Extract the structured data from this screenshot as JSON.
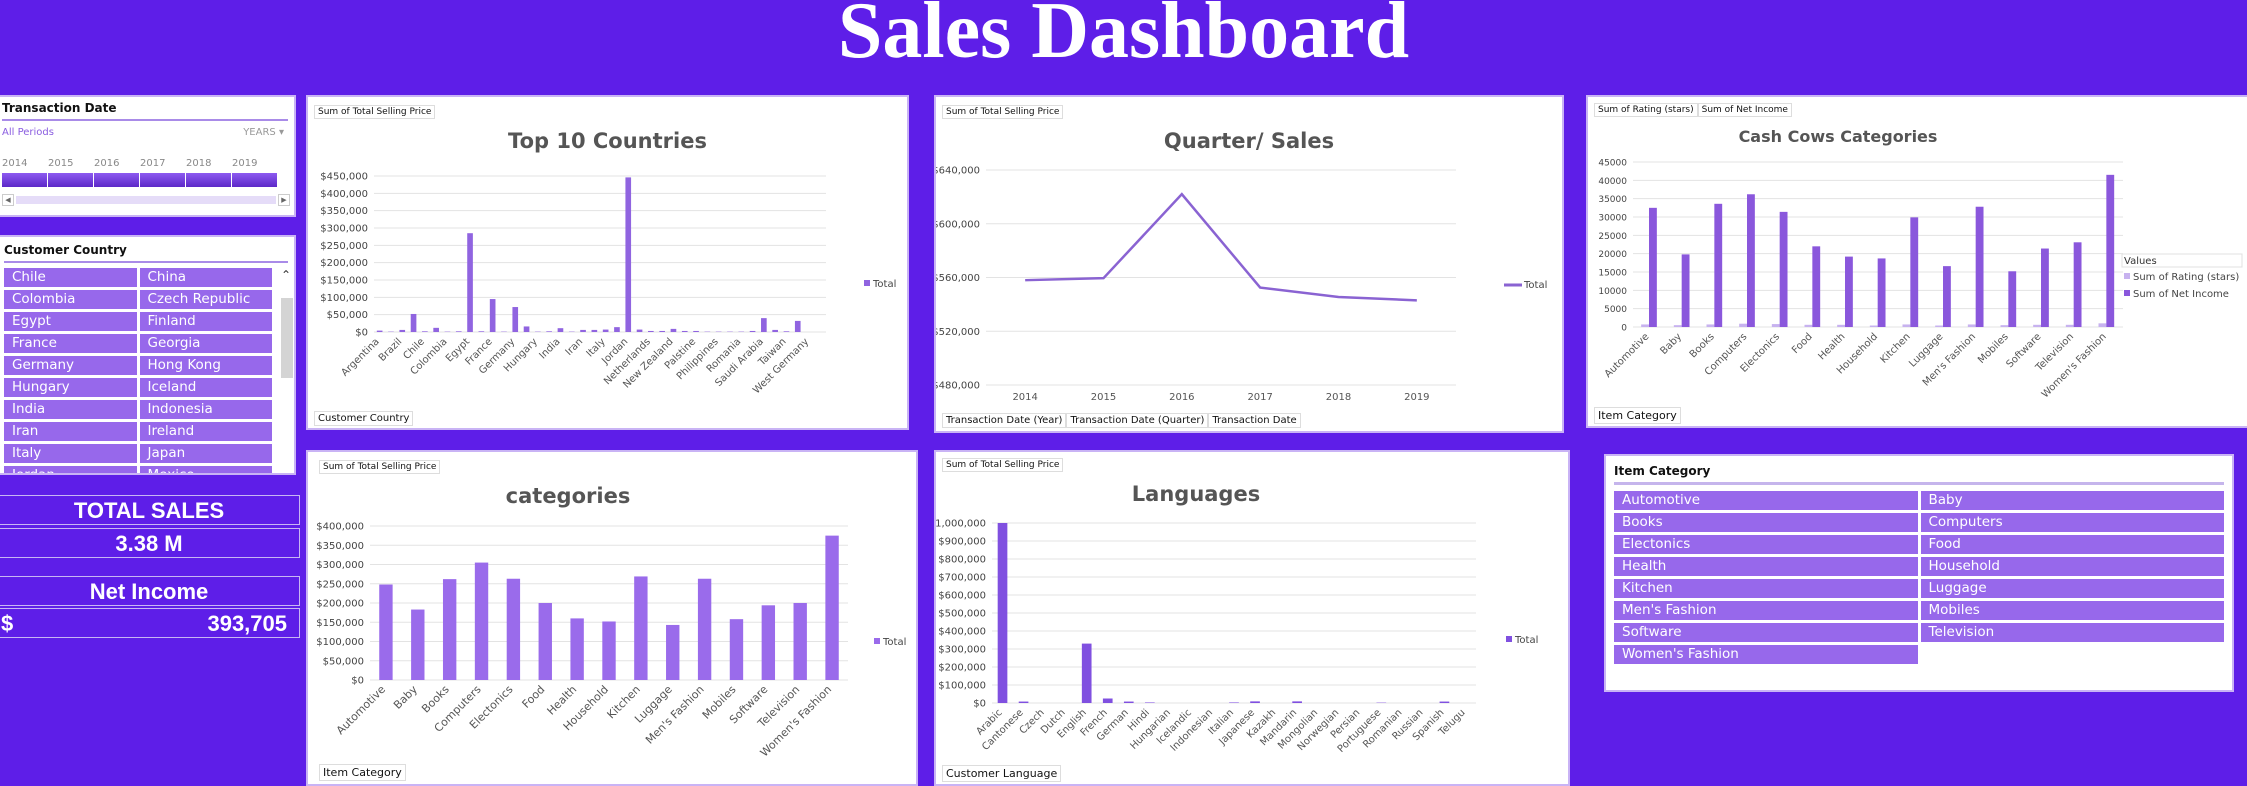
{
  "header": {
    "title": "Sales Dashboard"
  },
  "colors": {
    "background": "#5e1ee8",
    "bar": "#9768eb",
    "line": "#8a63d2",
    "chip": "#9768eb"
  },
  "timeline": {
    "title": "Transaction Date",
    "selection": "All Periods",
    "level": "YEARS",
    "years": [
      "2014",
      "2015",
      "2016",
      "2017",
      "2018",
      "2019"
    ]
  },
  "country_slicer": {
    "title": "Customer Country",
    "items": [
      "Chile",
      "China",
      "Colombia",
      "Czech Republic",
      "Egypt",
      "Finland",
      "France",
      "Georgia",
      "Germany",
      "Hong Kong",
      "Hungary",
      "Iceland",
      "India",
      "Indonesia",
      "Iran",
      "Ireland",
      "Italy",
      "Japan",
      "Jordan",
      "Mexico"
    ]
  },
  "kpis": {
    "total_sales_label": "TOTAL SALES",
    "total_sales_value": "3.38 M",
    "net_income_label": "Net Income",
    "net_income_currency": "$",
    "net_income_value": "393,705"
  },
  "category_slicer": {
    "title": "Item Category",
    "items": [
      "Automotive",
      "Baby",
      "Books",
      "Computers",
      "Electonics",
      "Food",
      "Health",
      "Household",
      "Kitchen",
      "Luggage",
      "Men's Fashion",
      "Mobiles",
      "Software",
      "Television",
      "Women's Fashion"
    ]
  },
  "chart_data": [
    {
      "id": "countries",
      "type": "bar",
      "title": "Top 10 Countries",
      "value_field": "Sum of Total Selling Price",
      "axis_field": "Customer Country",
      "legend": [
        "Total"
      ],
      "legend_position": "right",
      "ylim": [
        0,
        450000
      ],
      "yticks": [
        "$0",
        "$50,000",
        "$100,000",
        "$150,000",
        "$200,000",
        "$250,000",
        "$300,000",
        "$350,000",
        "$400,000",
        "$450,000"
      ],
      "categories": [
        "Argentina",
        "",
        "Brazil",
        "",
        "Chile",
        "",
        "Colombia",
        "",
        "Egypt",
        "",
        "France",
        "",
        "Germany",
        "",
        "Hungary",
        "",
        "India",
        "",
        "Iran",
        "",
        "Italy",
        "",
        "Jordan",
        "",
        "Netherlands",
        "",
        "New Zealand",
        "",
        "Palstine",
        "",
        "Philippines",
        "",
        "Romania",
        "",
        "Saudi Arabia",
        "",
        "Taiwan",
        "",
        "West Germany",
        ""
      ],
      "values": [
        4000,
        1000,
        6000,
        52000,
        2000,
        12000,
        1000,
        2000,
        285000,
        2000,
        95000,
        1000,
        72000,
        16000,
        1000,
        2000,
        11000,
        1000,
        6000,
        6000,
        7000,
        14000,
        446000,
        7000,
        3000,
        3000,
        9000,
        3000,
        3000,
        1000,
        1000,
        1000,
        1000,
        3000,
        40000,
        6000,
        2000,
        32000,
        0,
        0
      ]
    },
    {
      "id": "quarter",
      "type": "line",
      "title": "Quarter/ Sales",
      "value_field": "Sum of Total Selling Price",
      "axis_fields": [
        "Transaction Date (Year)",
        "Transaction Date (Quarter)",
        "Transaction Date"
      ],
      "legend": [
        "Total"
      ],
      "legend_position": "right",
      "ylim": [
        480000,
        640000
      ],
      "yticks": [
        "$480,000",
        "$520,000",
        "$560,000",
        "$600,000",
        "$640,000"
      ],
      "categories": [
        "2014",
        "2015",
        "2016",
        "2017",
        "2018",
        "2019"
      ],
      "values": [
        558000,
        559500,
        622000,
        552500,
        545500,
        543000
      ]
    },
    {
      "id": "cashcows",
      "type": "bar",
      "title": "Cash Cows Categories",
      "value_fields": [
        "Sum of Rating (stars)",
        "Sum of Net Income"
      ],
      "axis_field": "Item Category",
      "legend_title": "Values",
      "legend_position": "right",
      "ylim": [
        0,
        45000
      ],
      "yticks": [
        "0",
        "5000",
        "10000",
        "15000",
        "20000",
        "25000",
        "30000",
        "35000",
        "40000",
        "45000"
      ],
      "categories": [
        "Automotive",
        "Baby",
        "Books",
        "Computers",
        "Electonics",
        "Food",
        "Health",
        "Household",
        "Kitchen",
        "Luggage",
        "Men's Fashion",
        "Mobiles",
        "Software",
        "Television",
        "Women's Fashion"
      ],
      "series": [
        {
          "name": "Sum of Rating (stars)",
          "color": "#c7b2ef",
          "values": [
            700,
            500,
            700,
            900,
            800,
            600,
            600,
            400,
            700,
            400,
            700,
            500,
            600,
            600,
            1000
          ]
        },
        {
          "name": "Sum of Net Income",
          "color": "#8a57dc",
          "values": [
            32500,
            19800,
            33600,
            36200,
            31400,
            22000,
            19200,
            18700,
            29900,
            16600,
            32800,
            15200,
            21400,
            23100,
            41500
          ]
        }
      ]
    },
    {
      "id": "categories",
      "type": "bar",
      "title": "categories",
      "value_field": "Sum of Total Selling Price",
      "axis_field": "Item Category",
      "legend": [
        "Total"
      ],
      "legend_position": "right",
      "ylim": [
        0,
        400000
      ],
      "yticks": [
        "$0",
        "$50,000",
        "$100,000",
        "$150,000",
        "$200,000",
        "$250,000",
        "$300,000",
        "$350,000",
        "$400,000"
      ],
      "categories": [
        "Automotive",
        "Baby",
        "Books",
        "Computers",
        "Electonics",
        "Food",
        "Health",
        "Household",
        "Kitchen",
        "Luggage",
        "Men's Fashion",
        "Mobiles",
        "Software",
        "Television",
        "Women's Fashion"
      ],
      "values": [
        248000,
        183000,
        262000,
        305000,
        263000,
        200000,
        160000,
        152000,
        269000,
        143000,
        263000,
        158000,
        194000,
        200000,
        375000
      ]
    },
    {
      "id": "languages",
      "type": "bar",
      "title": "Languages",
      "value_field": "Sum of Total Selling Price",
      "axis_field": "Customer Language",
      "legend": [
        "Total"
      ],
      "legend_position": "right",
      "ylim": [
        0,
        1000000
      ],
      "yticks": [
        "$0",
        "$100,000",
        "$200,000",
        "$300,000",
        "$400,000",
        "$500,000",
        "$600,000",
        "$700,000",
        "$800,000",
        "$900,000",
        "$1,000,000"
      ],
      "categories": [
        "Arabic",
        "Cantonese",
        "Czech",
        "Dutch",
        "English",
        "French",
        "German",
        "Hindi",
        "Hungarian",
        "Icelandic",
        "Indonesian",
        "Italian",
        "Japanese",
        "Kazakh",
        "Mandarin",
        "Mongolian",
        "Norwegian",
        "Persian",
        "Portuguese",
        "Romanian",
        "Russian",
        "Spanish",
        "Telugu"
      ],
      "values": [
        1000000,
        8000,
        0,
        0,
        330000,
        25000,
        8000,
        3000,
        0,
        0,
        0,
        3000,
        9000,
        0,
        9000,
        0,
        0,
        0,
        2000,
        0,
        0,
        8000,
        0
      ]
    }
  ]
}
